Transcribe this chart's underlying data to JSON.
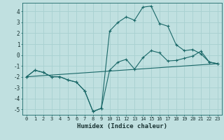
{
  "title": "",
  "xlabel": "Humidex (Indice chaleur)",
  "bg_color": "#c0e0e0",
  "grid_color": "#a8d0d0",
  "line_color": "#1a6868",
  "xlim": [
    -0.5,
    23.5
  ],
  "ylim": [
    -5.5,
    4.8
  ],
  "xticks": [
    0,
    1,
    2,
    3,
    4,
    5,
    6,
    7,
    8,
    9,
    10,
    11,
    12,
    13,
    14,
    15,
    16,
    17,
    18,
    19,
    20,
    21,
    22,
    23
  ],
  "yticks": [
    -5,
    -4,
    -3,
    -2,
    -1,
    0,
    1,
    2,
    3,
    4
  ],
  "line1_x": [
    0,
    1,
    2,
    3,
    4,
    5,
    6,
    7,
    8,
    9,
    10,
    11,
    12,
    13,
    14,
    15,
    16,
    17,
    18,
    19,
    20,
    21,
    22,
    23
  ],
  "line1_y": [
    -2.0,
    -1.4,
    -1.6,
    -2.0,
    -2.0,
    -2.3,
    -2.5,
    -3.3,
    -5.2,
    -4.9,
    -1.4,
    -0.65,
    -0.4,
    -1.3,
    -0.25,
    0.4,
    0.2,
    -0.55,
    -0.5,
    -0.3,
    -0.1,
    0.35,
    -0.65,
    -0.8
  ],
  "line2_x": [
    0,
    1,
    2,
    3,
    4,
    5,
    6,
    7,
    8,
    9,
    10,
    11,
    12,
    13,
    14,
    15,
    16,
    17,
    18,
    19,
    20,
    21,
    22,
    23
  ],
  "line2_y": [
    -2.0,
    -1.4,
    -1.6,
    -2.0,
    -2.0,
    -2.3,
    -2.5,
    -3.3,
    -5.2,
    -4.9,
    2.2,
    3.0,
    3.5,
    3.2,
    4.4,
    4.5,
    2.9,
    2.65,
    0.95,
    0.4,
    0.5,
    0.1,
    -0.65,
    -0.8
  ],
  "line3_x": [
    0,
    23
  ],
  "line3_y": [
    -2.0,
    -0.8
  ],
  "xlabel_fontsize": 6.5,
  "tick_fontsize": 5.0
}
